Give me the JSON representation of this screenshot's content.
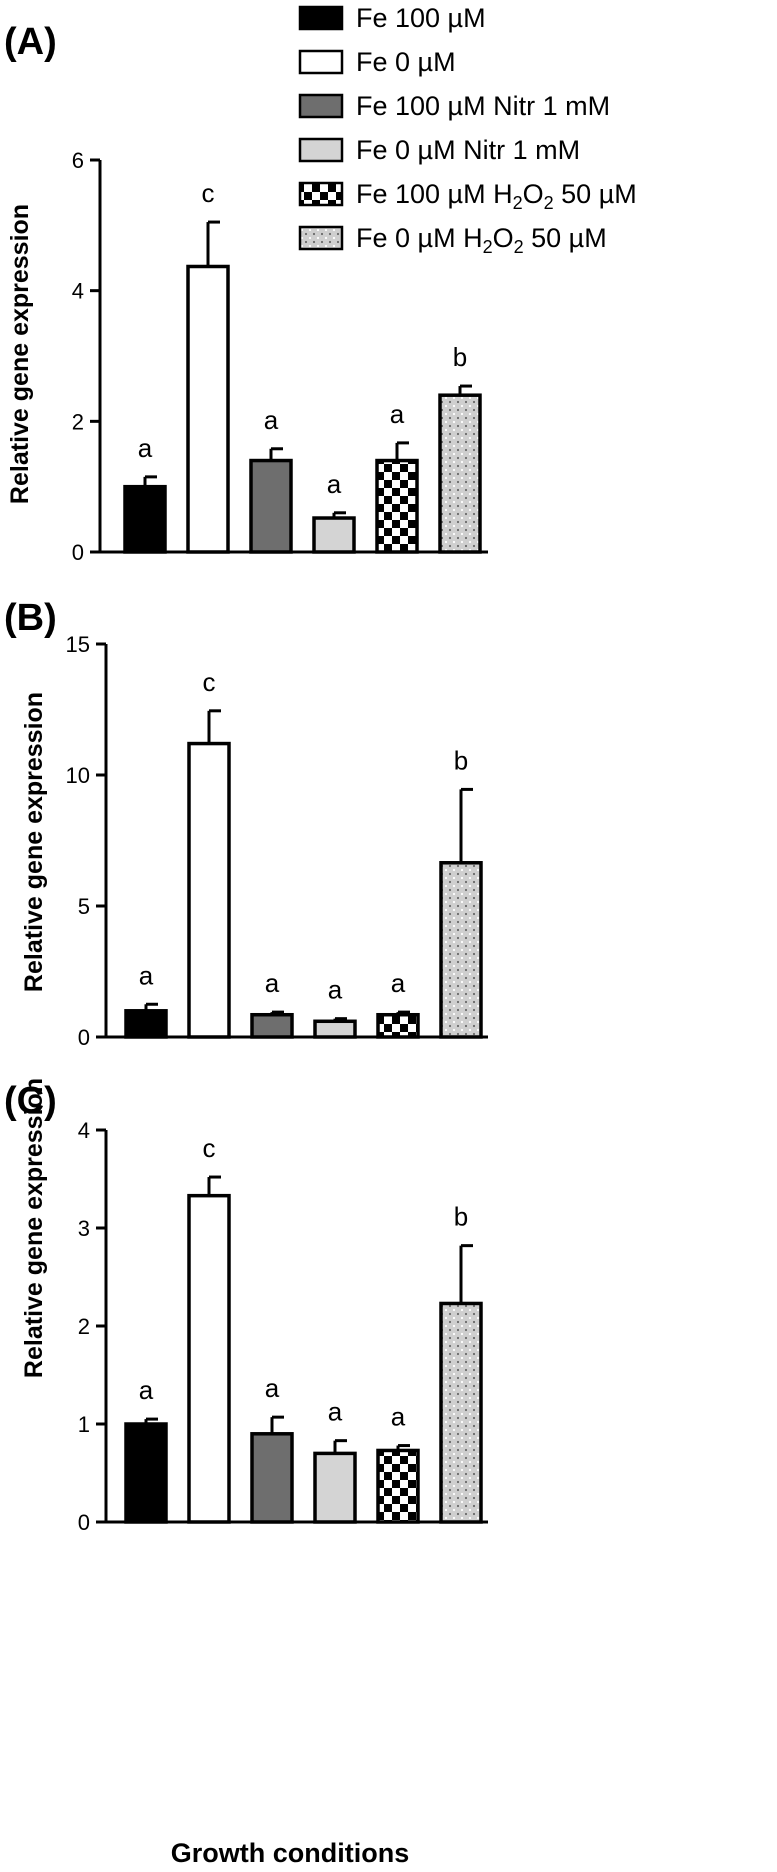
{
  "chart_data": [
    {
      "type": "bar",
      "panel_label": "(A)",
      "title": "",
      "xlabel": "",
      "ylabel": "Relative gene expression",
      "ylim": [
        0,
        6
      ],
      "yticks": [
        "0",
        "2",
        "4",
        "6"
      ],
      "grid": false,
      "legend": "top-right",
      "categories": [
        "Fe 100 µM",
        "Fe 0 µM",
        "Fe 100 µM Nitr 1 mM",
        "Fe 0 µM Nitr 1 mM",
        "Fe 100 µM H2O2 50 µM",
        "Fe 0 µM H2O2 50 µM"
      ],
      "values": [
        1.0,
        4.37,
        1.4,
        0.52,
        1.4,
        2.4
      ],
      "error": [
        0.15,
        0.68,
        0.18,
        0.08,
        0.27,
        0.14
      ],
      "significance": [
        "a",
        "c",
        "a",
        "a",
        "a",
        "b"
      ]
    },
    {
      "type": "bar",
      "panel_label": "(B)",
      "title": "",
      "xlabel": "",
      "ylabel": "Relative gene expression",
      "ylim": [
        0,
        15
      ],
      "yticks": [
        "0",
        "5",
        "10",
        "15"
      ],
      "grid": false,
      "categories": [
        "Fe 100 µM",
        "Fe 0 µM",
        "Fe 100 µM Nitr 1 mM",
        "Fe 0 µM Nitr 1 mM",
        "Fe 100 µM H2O2 50 µM",
        "Fe 0 µM H2O2 50 µM"
      ],
      "values": [
        1.0,
        11.2,
        0.85,
        0.6,
        0.85,
        6.65
      ],
      "error": [
        0.25,
        1.25,
        0.1,
        0.1,
        0.1,
        2.8
      ],
      "significance": [
        "a",
        "c",
        "a",
        "a",
        "a",
        "b"
      ]
    },
    {
      "type": "bar",
      "panel_label": "(C)",
      "title": "",
      "xlabel": "Growth conditions",
      "ylabel": "Relative gene expression",
      "ylim": [
        0,
        4
      ],
      "yticks": [
        "0",
        "1",
        "2",
        "3",
        "4"
      ],
      "grid": false,
      "categories": [
        "Fe 100 µM",
        "Fe 0 µM",
        "Fe 100 µM Nitr 1 mM",
        "Fe 0 µM Nitr 1 mM",
        "Fe 100 µM H2O2 50 µM",
        "Fe 0 µM H2O2 50 µM"
      ],
      "values": [
        1.0,
        3.33,
        0.9,
        0.7,
        0.73,
        2.23
      ],
      "error": [
        0.05,
        0.19,
        0.17,
        0.13,
        0.05,
        0.59
      ],
      "significance": [
        "a",
        "c",
        "a",
        "a",
        "a",
        "b"
      ]
    }
  ],
  "legend": {
    "entries": [
      {
        "name": "Fe 100 µM",
        "fill": "#000000",
        "pattern": "solid"
      },
      {
        "name": "Fe 0 µM",
        "fill": "#ffffff",
        "pattern": "solid"
      },
      {
        "name": "Fe 100 µM Nitr 1 mM",
        "fill": "#6e6e6e",
        "pattern": "solid"
      },
      {
        "name": "Fe 0 µM Nitr 1 mM",
        "fill": "#d4d4d4",
        "pattern": "solid"
      },
      {
        "name": "Fe 100 µM H",
        "sub": "2",
        "mid": "O",
        "sub2": "2",
        "tail": " 50 µM",
        "pattern": "checker"
      },
      {
        "name": "Fe 0 µM H",
        "sub": "2",
        "mid": "O",
        "sub2": "2",
        "tail": " 50 µM",
        "pattern": "dots"
      }
    ]
  },
  "colors": {
    "black": "#000000",
    "white": "#ffffff",
    "dark_gray": "#6e6e6e",
    "light_gray": "#d4d4d4",
    "dots_bg": "#cfcfcf"
  }
}
